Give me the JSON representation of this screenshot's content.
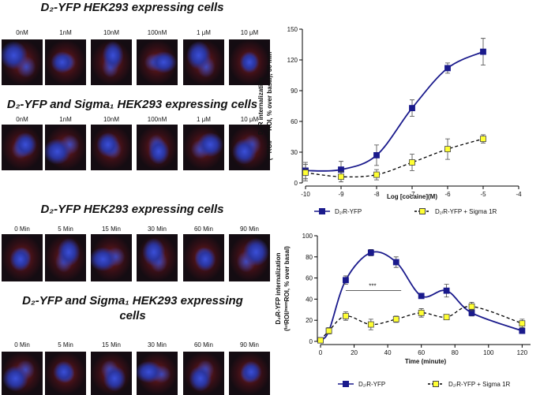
{
  "panels": [
    {
      "title": "D₂-YFP HEK293 expressing cells",
      "labels": [
        "0nM",
        "1nM",
        "10nM",
        "100nM",
        "1 μM",
        "10 μM"
      ]
    },
    {
      "title": "D₂-YFP and Sigma₁ HEK293 expressing cells",
      "labels": [
        "0nM",
        "1nM",
        "10nM",
        "100nM",
        "1 μM",
        "10 μM"
      ]
    },
    {
      "title": "D₂-YFP HEK293 expressing cells",
      "labels": [
        "0 Min",
        "5 Min",
        "15 Min",
        "30 Min",
        "60 Min",
        "90 Min"
      ]
    },
    {
      "title": "D₂-YFP and Sigma₁ HEK293 expressing cells",
      "labels": [
        "0 Min",
        "5 Min",
        "15 Min",
        "30 Min",
        "60 Min",
        "90 Min"
      ]
    }
  ],
  "charts": [
    {
      "type": "line",
      "x_label": "Log [cocaine](M)",
      "y_label": [
        "D₂ₗR internalization",
        "(ⁱⁿᵗROI/ᵐᵉᵐROI, % over basal), 30 min"
      ],
      "x": [
        -10,
        -9,
        -8,
        -7,
        -6,
        -5
      ],
      "xlim": [
        -10,
        -4
      ],
      "xticks": [
        -10,
        -9,
        -8,
        -7,
        -6,
        -5,
        -4
      ],
      "ylim": [
        0,
        150
      ],
      "yticks": [
        0,
        30,
        60,
        90,
        120,
        150
      ],
      "series": [
        {
          "name": "D₂ₗR-YFP",
          "color": "#1a1a8c",
          "line_color": "#1a1a8c",
          "dashed": false,
          "values": [
            12,
            13,
            27,
            73,
            112,
            128
          ],
          "errors": [
            8,
            8,
            10,
            8,
            5,
            13
          ]
        },
        {
          "name": "D₂ₗR-YFP + Sigma 1R",
          "color": "#ffff33",
          "line_color": "#000000",
          "dashed": true,
          "values": [
            10,
            6,
            8,
            20,
            33,
            43
          ],
          "errors": [
            8,
            5,
            5,
            8,
            10,
            4
          ]
        }
      ]
    },
    {
      "type": "line",
      "x_label": "Time (minute)",
      "y_label": [
        "D₂ₗR-YFP internalization",
        "(ⁱⁿᵗROI/ᵐᵉᵐROI, % over basal)"
      ],
      "annotation": "***",
      "x": [
        0,
        5,
        15,
        30,
        45,
        60,
        75,
        90,
        120
      ],
      "xlim": [
        0,
        125
      ],
      "xticks": [
        0,
        20,
        40,
        60,
        80,
        100,
        120
      ],
      "ylim": [
        0,
        100
      ],
      "yticks": [
        0,
        20,
        40,
        60,
        80,
        100
      ],
      "series": [
        {
          "name": "D₂ₗR-YFP",
          "color": "#1a1a8c",
          "line_color": "#1a1a8c",
          "dashed": false,
          "values": [
            1,
            10,
            58,
            84,
            75,
            43,
            48,
            27,
            10
          ],
          "errors": [
            0,
            3,
            4,
            3,
            5,
            2,
            6,
            3,
            2
          ]
        },
        {
          "name": "D₂ₗR-YFP + Sigma 1R",
          "color": "#ffff33",
          "line_color": "#000000",
          "dashed": true,
          "values": [
            1,
            10,
            24,
            16,
            21,
            27,
            23,
            33,
            17
          ],
          "errors": [
            0,
            2,
            4,
            5,
            3,
            4,
            2,
            4,
            4
          ]
        }
      ]
    }
  ]
}
